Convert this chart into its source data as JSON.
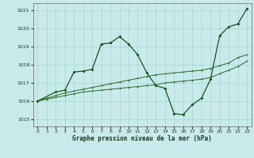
{
  "xlabel": "Graphe pression niveau de la mer (hPa)",
  "bg_color": "#c8eaea",
  "grid_color": "#a8d4d4",
  "line_color_dark": "#1a5218",
  "line_color_mid": "#2a6828",
  "xlim": [
    -0.5,
    23.5
  ],
  "ylim": [
    1014.6,
    1021.4
  ],
  "yticks": [
    1015,
    1016,
    1017,
    1018,
    1019,
    1020,
    1021
  ],
  "xticks": [
    0,
    1,
    2,
    3,
    4,
    5,
    6,
    7,
    8,
    9,
    10,
    11,
    12,
    13,
    14,
    15,
    16,
    17,
    18,
    19,
    20,
    21,
    22,
    23
  ],
  "series1_x": [
    0,
    1,
    2,
    3,
    4,
    5,
    6,
    7,
    8,
    9,
    10,
    11,
    12,
    13,
    14,
    15,
    16,
    17,
    18,
    19,
    20,
    21,
    22,
    23
  ],
  "series1_y": [
    1016.0,
    1016.1,
    1016.2,
    1016.3,
    1016.4,
    1016.5,
    1016.55,
    1016.6,
    1016.65,
    1016.7,
    1016.75,
    1016.8,
    1016.85,
    1016.9,
    1017.0,
    1017.05,
    1017.1,
    1017.15,
    1017.2,
    1017.3,
    1017.5,
    1017.7,
    1017.9,
    1018.2
  ],
  "series2_x": [
    0,
    1,
    2,
    3,
    4,
    5,
    6,
    7,
    8,
    9,
    10,
    11,
    12,
    13,
    14,
    15,
    16,
    17,
    18,
    19,
    20,
    21,
    22,
    23
  ],
  "series2_y": [
    1016.0,
    1016.15,
    1016.3,
    1016.45,
    1016.55,
    1016.65,
    1016.75,
    1016.85,
    1016.95,
    1017.05,
    1017.15,
    1017.25,
    1017.35,
    1017.45,
    1017.5,
    1017.55,
    1017.6,
    1017.65,
    1017.7,
    1017.8,
    1017.95,
    1018.1,
    1018.4,
    1018.55
  ],
  "series3_x": [
    0,
    2,
    3,
    4,
    5,
    6,
    7,
    8,
    9,
    10,
    11,
    12,
    13,
    14,
    15,
    16,
    17,
    18,
    19,
    20,
    21,
    22,
    23
  ],
  "series3_y": [
    1016.0,
    1016.5,
    1016.6,
    1017.6,
    1017.65,
    1017.75,
    1019.15,
    1019.2,
    1019.55,
    1019.15,
    1018.55,
    1017.55,
    1016.85,
    1016.7,
    1015.3,
    1015.25,
    1015.8,
    1016.15,
    1017.2,
    1019.6,
    1020.1,
    1020.25,
    1021.1
  ]
}
